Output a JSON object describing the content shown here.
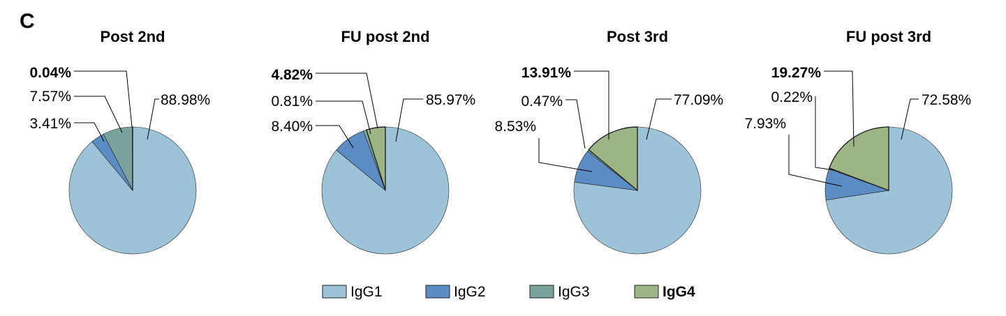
{
  "panel_label": "C",
  "colors": {
    "IgG1": "#9dc3d9",
    "IgG2": "#5b8cc3",
    "IgG3": "#79a39c",
    "IgG4": "#9db585"
  },
  "legend": [
    {
      "name": "IgG1",
      "bold": false
    },
    {
      "name": "IgG2",
      "bold": false
    },
    {
      "name": "IgG3",
      "bold": false
    },
    {
      "name": "IgG4",
      "bold": true
    }
  ],
  "chart_data": [
    {
      "type": "pie",
      "title": "Post  2nd",
      "slices": [
        {
          "series": "IgG1",
          "value": 88.98,
          "label": "88.98%",
          "bold": false
        },
        {
          "series": "IgG2",
          "value": 3.41,
          "label": "3.41%",
          "bold": false
        },
        {
          "series": "IgG3",
          "value": 7.57,
          "label": "7.57%",
          "bold": false
        },
        {
          "series": "IgG4",
          "value": 0.04,
          "label": "0.04%",
          "bold": true
        }
      ]
    },
    {
      "type": "pie",
      "title": "FU post 2nd",
      "slices": [
        {
          "series": "IgG1",
          "value": 85.97,
          "label": "85.97%",
          "bold": false
        },
        {
          "series": "IgG2",
          "value": 8.4,
          "label": "8.40%",
          "bold": false
        },
        {
          "series": "IgG3",
          "value": 0.81,
          "label": "0.81%",
          "bold": false
        },
        {
          "series": "IgG4",
          "value": 4.82,
          "label": "4.82%",
          "bold": true
        }
      ]
    },
    {
      "type": "pie",
      "title": "Post 3rd",
      "slices": [
        {
          "series": "IgG1",
          "value": 77.09,
          "label": "77.09%",
          "bold": false
        },
        {
          "series": "IgG2",
          "value": 8.53,
          "label": "8.53%",
          "bold": false
        },
        {
          "series": "IgG3",
          "value": 0.47,
          "label": "0.47%",
          "bold": false
        },
        {
          "series": "IgG4",
          "value": 13.91,
          "label": "13.91%",
          "bold": true
        }
      ]
    },
    {
      "type": "pie",
      "title": "FU post 3rd",
      "slices": [
        {
          "series": "IgG1",
          "value": 72.58,
          "label": "72.58%",
          "bold": false
        },
        {
          "series": "IgG2",
          "value": 7.93,
          "label": "7.93%",
          "bold": false
        },
        {
          "series": "IgG3",
          "value": 0.22,
          "label": "0.22%",
          "bold": false
        },
        {
          "series": "IgG4",
          "value": 19.27,
          "label": "19.27%",
          "bold": true
        }
      ]
    }
  ]
}
